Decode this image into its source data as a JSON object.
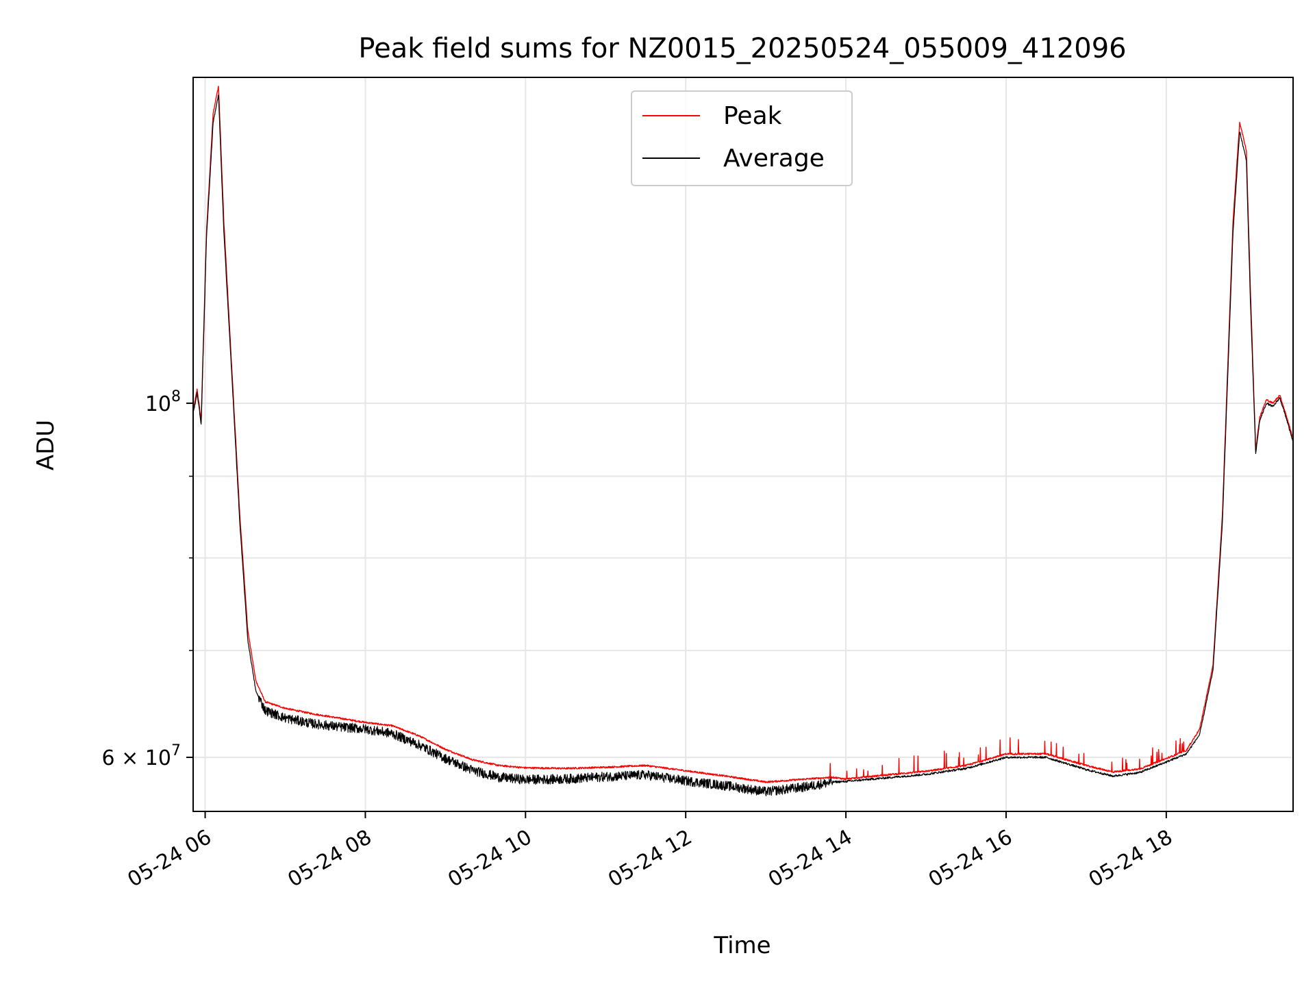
{
  "chart_data": {
    "type": "line",
    "title": "Peak field sums for NZ0015_20250524_055009_412096",
    "xlabel": "Time",
    "ylabel": "ADU",
    "yscale": "log",
    "xlim": [
      "05-24 05:51",
      "05-24 19:35"
    ],
    "ylim": [
      55500000,
      160000000
    ],
    "grid": true,
    "legend_position": "top-center",
    "x_ticks": [
      {
        "time": "05-24 06:00",
        "label": "05-24 06"
      },
      {
        "time": "05-24 08:00",
        "label": "05-24 08"
      },
      {
        "time": "05-24 10:00",
        "label": "05-24 10"
      },
      {
        "time": "05-24 12:00",
        "label": "05-24 12"
      },
      {
        "time": "05-24 14:00",
        "label": "05-24 14"
      },
      {
        "time": "05-24 16:00",
        "label": "05-24 16"
      },
      {
        "time": "05-24 18:00",
        "label": "05-24 18"
      }
    ],
    "y_major_ticks": [
      {
        "value": 60000000,
        "base": "6",
        "mid": " × 10",
        "exp": "7"
      },
      {
        "value": 100000000,
        "base": "",
        "mid": "10",
        "exp": "8"
      }
    ],
    "y_minor_ticks": [
      70000000,
      80000000,
      90000000
    ],
    "series": [
      {
        "name": "Peak",
        "color": "#ff0000",
        "points": [
          [
            "05-24 05:51",
            99000000
          ],
          [
            "05-24 05:54",
            102000000
          ],
          [
            "05-24 05:57",
            97500000
          ],
          [
            "05-24 06:01",
            128000000
          ],
          [
            "05-24 06:06",
            152000000
          ],
          [
            "05-24 06:10",
            158000000
          ],
          [
            "05-24 06:14",
            130000000
          ],
          [
            "05-24 06:20",
            105000000
          ],
          [
            "05-24 06:26",
            85000000
          ],
          [
            "05-24 06:32",
            72000000
          ],
          [
            "05-24 06:38",
            67000000
          ],
          [
            "05-24 06:45",
            65000000
          ],
          [
            "05-24 07:00",
            64400000
          ],
          [
            "05-24 07:20",
            63900000
          ],
          [
            "05-24 07:40",
            63500000
          ],
          [
            "05-24 08:00",
            63100000
          ],
          [
            "05-24 08:20",
            62800000
          ],
          [
            "05-24 08:40",
            61900000
          ],
          [
            "05-24 09:00",
            60700000
          ],
          [
            "05-24 09:20",
            59800000
          ],
          [
            "05-24 09:40",
            59300000
          ],
          [
            "05-24 10:00",
            59100000
          ],
          [
            "05-24 10:30",
            59050000
          ],
          [
            "05-24 11:00",
            59150000
          ],
          [
            "05-24 11:30",
            59300000
          ],
          [
            "05-24 12:00",
            58850000
          ],
          [
            "05-24 12:30",
            58400000
          ],
          [
            "05-24 13:00",
            57900000
          ],
          [
            "05-24 13:30",
            58150000
          ],
          [
            "05-24 13:50",
            58300000
          ],
          [
            "05-24 14:00",
            58150000
          ],
          [
            "05-24 14:30",
            58500000
          ],
          [
            "05-24 15:00",
            58800000
          ],
          [
            "05-24 15:30",
            59300000
          ],
          [
            "05-24 16:00",
            60300000
          ],
          [
            "05-24 16:30",
            60300000
          ],
          [
            "05-24 17:00",
            59300000
          ],
          [
            "05-24 17:20",
            58750000
          ],
          [
            "05-24 17:40",
            59000000
          ],
          [
            "05-24 18:00",
            59900000
          ],
          [
            "05-24 18:15",
            60600000
          ],
          [
            "05-24 18:25",
            62500000
          ],
          [
            "05-24 18:35",
            68500000
          ],
          [
            "05-24 18:42",
            85000000
          ],
          [
            "05-24 18:50",
            130000000
          ],
          [
            "05-24 18:55",
            150000000
          ],
          [
            "05-24 19:00",
            144000000
          ],
          [
            "05-24 19:03",
            118000000
          ],
          [
            "05-24 19:07",
            93500000
          ],
          [
            "05-24 19:10",
            98000000
          ],
          [
            "05-24 19:15",
            100500000
          ],
          [
            "05-24 19:20",
            100000000
          ],
          [
            "05-24 19:25",
            101200000
          ],
          [
            "05-24 19:30",
            98200000
          ],
          [
            "05-24 19:35",
            95000000
          ]
        ]
      },
      {
        "name": "Average",
        "color": "#000000",
        "points": [
          [
            "05-24 05:51",
            98500000
          ],
          [
            "05-24 05:54",
            101500000
          ],
          [
            "05-24 05:57",
            97000000
          ],
          [
            "05-24 06:01",
            127000000
          ],
          [
            "05-24 06:06",
            150000000
          ],
          [
            "05-24 06:10",
            156000000
          ],
          [
            "05-24 06:14",
            128000000
          ],
          [
            "05-24 06:20",
            104000000
          ],
          [
            "05-24 06:26",
            84000000
          ],
          [
            "05-24 06:32",
            71000000
          ],
          [
            "05-24 06:38",
            66000000
          ],
          [
            "05-24 06:45",
            64200000
          ],
          [
            "05-24 07:00",
            63500000
          ],
          [
            "05-24 07:20",
            63000000
          ],
          [
            "05-24 07:40",
            62700000
          ],
          [
            "05-24 08:00",
            62500000
          ],
          [
            "05-24 08:20",
            62100000
          ],
          [
            "05-24 08:40",
            61100000
          ],
          [
            "05-24 09:00",
            59900000
          ],
          [
            "05-24 09:20",
            58900000
          ],
          [
            "05-24 09:40",
            58300000
          ],
          [
            "05-24 10:00",
            58100000
          ],
          [
            "05-24 10:30",
            58150000
          ],
          [
            "05-24 11:00",
            58350000
          ],
          [
            "05-24 11:30",
            58500000
          ],
          [
            "05-24 12:00",
            58000000
          ],
          [
            "05-24 12:30",
            57600000
          ],
          [
            "05-24 13:00",
            57100000
          ],
          [
            "05-24 13:30",
            57500000
          ],
          [
            "05-24 13:50",
            57900000
          ],
          [
            "05-24 14:00",
            57950000
          ],
          [
            "05-24 14:30",
            58250000
          ],
          [
            "05-24 15:00",
            58550000
          ],
          [
            "05-24 15:30",
            59050000
          ],
          [
            "05-24 16:00",
            60000000
          ],
          [
            "05-24 16:30",
            60000000
          ],
          [
            "05-24 17:00",
            58950000
          ],
          [
            "05-24 17:20",
            58400000
          ],
          [
            "05-24 17:40",
            58700000
          ],
          [
            "05-24 18:00",
            59600000
          ],
          [
            "05-24 18:15",
            60300000
          ],
          [
            "05-24 18:25",
            62000000
          ],
          [
            "05-24 18:35",
            68000000
          ],
          [
            "05-24 18:42",
            84000000
          ],
          [
            "05-24 18:50",
            128000000
          ],
          [
            "05-24 18:55",
            148000000
          ],
          [
            "05-24 19:00",
            142000000
          ],
          [
            "05-24 19:03",
            116000000
          ],
          [
            "05-24 19:07",
            93000000
          ],
          [
            "05-24 19:10",
            97500000
          ],
          [
            "05-24 19:15",
            100000000
          ],
          [
            "05-24 19:20",
            99500000
          ],
          [
            "05-24 19:25",
            100800000
          ],
          [
            "05-24 19:30",
            97800000
          ],
          [
            "05-24 19:35",
            94500000
          ]
        ]
      }
    ]
  }
}
